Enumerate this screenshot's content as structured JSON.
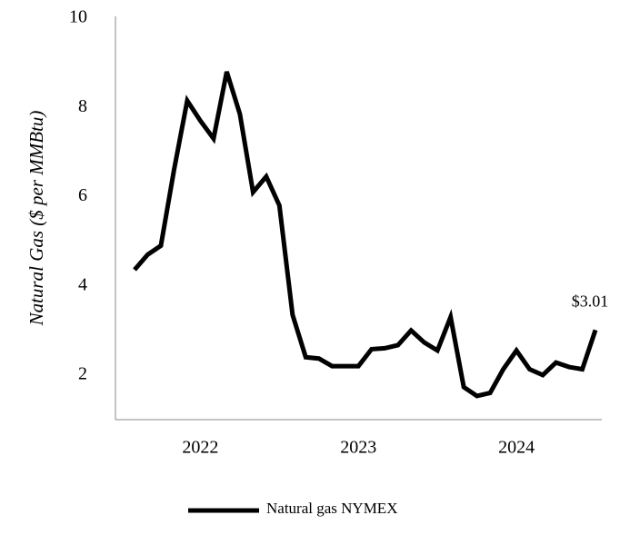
{
  "chart_data": {
    "type": "line",
    "y_label": "Natural Gas ($ per MMBtu)",
    "categories": [
      null,
      null,
      null,
      null,
      null,
      "2022",
      null,
      null,
      null,
      null,
      null,
      null,
      null,
      null,
      null,
      null,
      null,
      "2023",
      null,
      null,
      null,
      null,
      null,
      null,
      null,
      null,
      null,
      null,
      null,
      "2024",
      null,
      null,
      null,
      null,
      null,
      null
    ],
    "series": [
      {
        "name": "Natural gas NYMEX",
        "color": "#000000",
        "values": [
          4.36,
          4.7,
          4.9,
          6.6,
          8.15,
          7.7,
          7.3,
          8.8,
          7.85,
          6.1,
          6.45,
          5.8,
          3.35,
          2.4,
          2.37,
          2.2,
          2.2,
          2.2,
          2.58,
          2.6,
          2.67,
          3.0,
          2.73,
          2.55,
          3.3,
          1.73,
          1.53,
          1.6,
          2.13,
          2.55,
          2.13,
          2.0,
          2.28,
          2.18,
          2.13,
          3.01
        ],
        "value_labels": [
          null,
          null,
          null,
          null,
          null,
          null,
          null,
          null,
          null,
          null,
          null,
          null,
          null,
          null,
          null,
          null,
          null,
          null,
          null,
          null,
          null,
          null,
          null,
          null,
          null,
          null,
          null,
          null,
          null,
          null,
          null,
          null,
          null,
          null,
          null,
          "$3.01"
        ]
      }
    ],
    "ylim": [
      1,
      10
    ],
    "yticks": [
      2,
      4,
      6,
      8,
      10
    ],
    "grid": false,
    "legend": "bottom"
  }
}
